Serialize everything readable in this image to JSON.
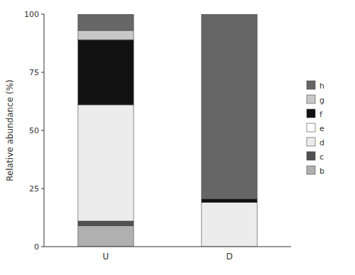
{
  "chart_data": {
    "type": "bar",
    "stacked": true,
    "ylabel": "Relative abundance (%)",
    "categories": [
      "U",
      "D"
    ],
    "series": [
      {
        "name": "b",
        "color": "#b0b0b0",
        "values": [
          9.0,
          0.0
        ]
      },
      {
        "name": "c",
        "color": "#505050",
        "values": [
          2.0,
          0.0
        ]
      },
      {
        "name": "d",
        "color": "#ececec",
        "values": [
          50.0,
          19.0
        ]
      },
      {
        "name": "e",
        "color": "#ffffff",
        "values": [
          0.0,
          0.0
        ]
      },
      {
        "name": "f",
        "color": "#111111",
        "values": [
          28.0,
          1.5
        ]
      },
      {
        "name": "g",
        "color": "#c8c8c8",
        "values": [
          4.0,
          0.0
        ]
      },
      {
        "name": "h",
        "color": "#666666",
        "values": [
          7.0,
          79.5
        ]
      }
    ],
    "ylim": [
      0,
      100
    ],
    "yticks": [
      0,
      25,
      50,
      75,
      100
    ],
    "grid": false,
    "legend": "right"
  }
}
